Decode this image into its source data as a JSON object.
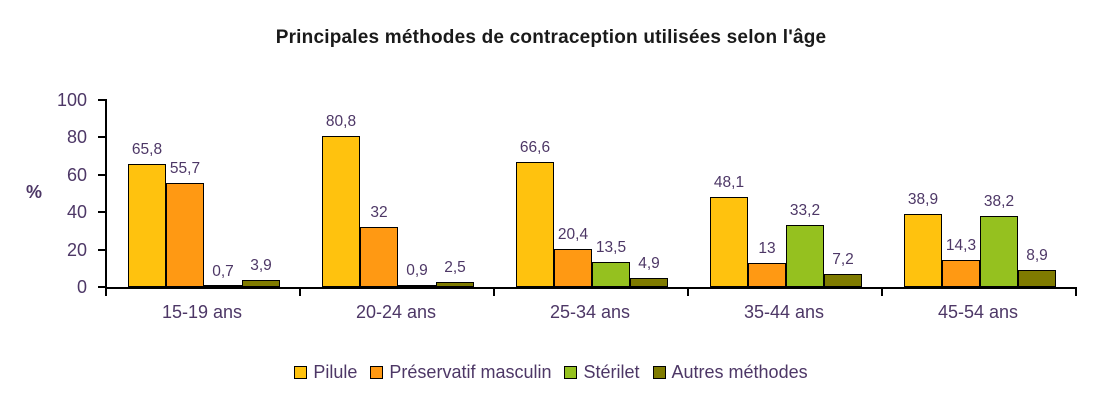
{
  "title": "Principales méthodes de contraception utilisées selon l'âge",
  "colors": {
    "title": "#1a1a1a",
    "text": "#4d3766",
    "axis": "#000000",
    "background": "#ffffff"
  },
  "chart_data": {
    "type": "bar",
    "title": "Principales méthodes de contraception utilisées selon l'âge",
    "categories": [
      "15-19 ans",
      "20-24 ans",
      "25-34 ans",
      "35-44 ans",
      "45-54 ans"
    ],
    "series": [
      {
        "name": "Pilule",
        "color": "#FFC20E",
        "values": [
          65.8,
          80.8,
          66.6,
          48.1,
          38.9
        ],
        "labels": [
          "65,8",
          "80,8",
          "66,6",
          "48,1",
          "38,9"
        ]
      },
      {
        "name": "Préservatif masculin",
        "color": "#FF9913",
        "values": [
          55.7,
          32,
          20.4,
          13,
          14.3
        ],
        "labels": [
          "55,7",
          "32",
          "20,4",
          "13",
          "14,3"
        ]
      },
      {
        "name": "Stérilet",
        "color": "#95C11F",
        "values": [
          0.7,
          0.9,
          13.5,
          33.2,
          38.2
        ],
        "labels": [
          "0,7",
          "0,9",
          "13,5",
          "33,2",
          "38,2"
        ]
      },
      {
        "name": "Autres méthodes",
        "color": "#7F7B00",
        "values": [
          3.9,
          2.5,
          4.9,
          7.2,
          8.9
        ],
        "labels": [
          "3,9",
          "2,5",
          "4,9",
          "7,2",
          "8,9"
        ]
      }
    ],
    "xlabel": "",
    "ylabel": "%",
    "ylim": [
      0,
      100
    ],
    "yticks": [
      0,
      20,
      40,
      60,
      80,
      100
    ],
    "grid": false,
    "legend_position": "bottom"
  }
}
